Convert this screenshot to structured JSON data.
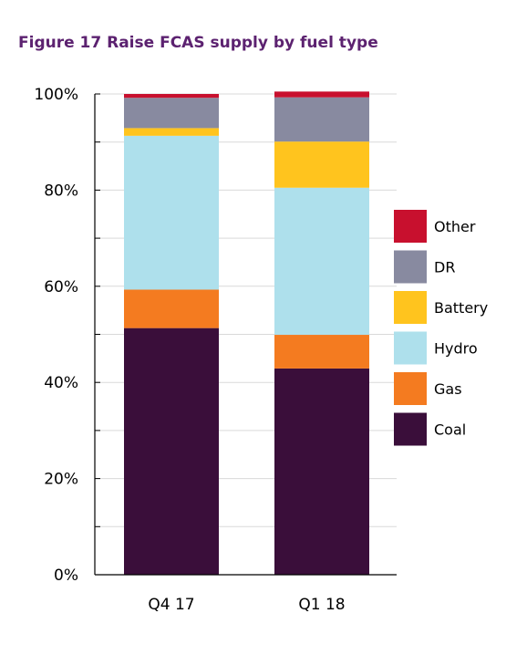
{
  "chart_data": {
    "type": "bar",
    "stacked": true,
    "title": "Figure 17  Raise FCAS supply by fuel type",
    "xlabel": "",
    "ylabel": "",
    "ylim": [
      0,
      100
    ],
    "yticks": [
      "0%",
      "20%",
      "40%",
      "60%",
      "80%",
      "100%"
    ],
    "categories": [
      "Q4 17",
      "Q1 18"
    ],
    "grid": true,
    "legend_position": "right",
    "series": [
      {
        "name": "Coal",
        "color": "#3a0e3a",
        "values": [
          51.3,
          42.9
        ]
      },
      {
        "name": "Gas",
        "color": "#f47b20",
        "values": [
          8.0,
          7.0
        ]
      },
      {
        "name": "Hydro",
        "color": "#aee0ec",
        "values": [
          32.0,
          30.6
        ]
      },
      {
        "name": "Battery",
        "color": "#ffc41e",
        "values": [
          1.6,
          9.6
        ]
      },
      {
        "name": "DR",
        "color": "#888aa0",
        "values": [
          6.3,
          9.2
        ]
      },
      {
        "name": "Other",
        "color": "#c8102e",
        "values": [
          0.8,
          1.2
        ]
      }
    ]
  }
}
